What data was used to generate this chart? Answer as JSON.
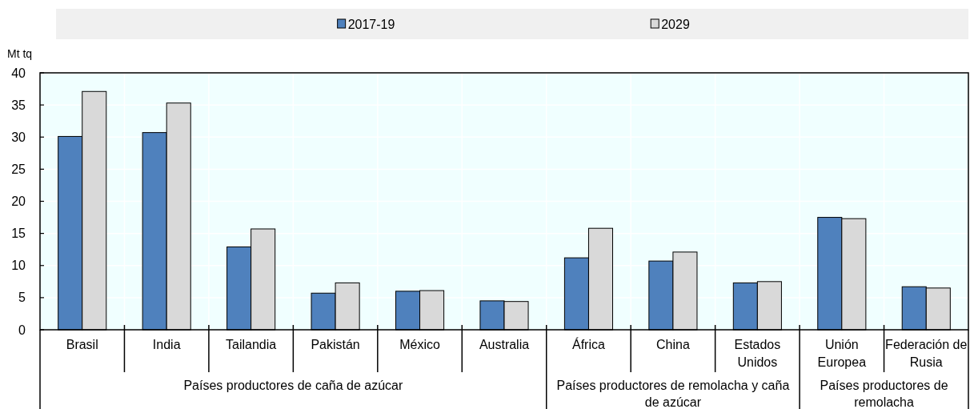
{
  "chart_data": {
    "type": "bar",
    "ylabel": "Mt tq",
    "categories": [
      "Brasil",
      "India",
      "Tailandia",
      "Pakistán",
      "México",
      "Australia",
      "África",
      "China",
      "Estados Unidos",
      "Unión Europea",
      "Federación de Rusia"
    ],
    "series": [
      {
        "name": "2017-19",
        "color": "#4f81bd",
        "values": [
          30.1,
          30.7,
          12.9,
          5.7,
          6.0,
          4.5,
          11.2,
          10.7,
          7.3,
          17.5,
          6.7
        ]
      },
      {
        "name": "2029",
        "color": "#d9d9d9",
        "values": [
          37.1,
          35.3,
          15.7,
          7.3,
          6.1,
          4.4,
          15.8,
          12.1,
          7.5,
          17.3,
          6.5
        ]
      }
    ],
    "ylim": [
      0,
      40
    ],
    "yticks": [
      0,
      5,
      10,
      15,
      20,
      25,
      30,
      35,
      40
    ],
    "grid": true,
    "legend": "top",
    "annotations": [
      "Países productores de caña de azúcar",
      "Países productores de remolacha y caña de azúcar",
      "Países productores de remolacha"
    ]
  }
}
